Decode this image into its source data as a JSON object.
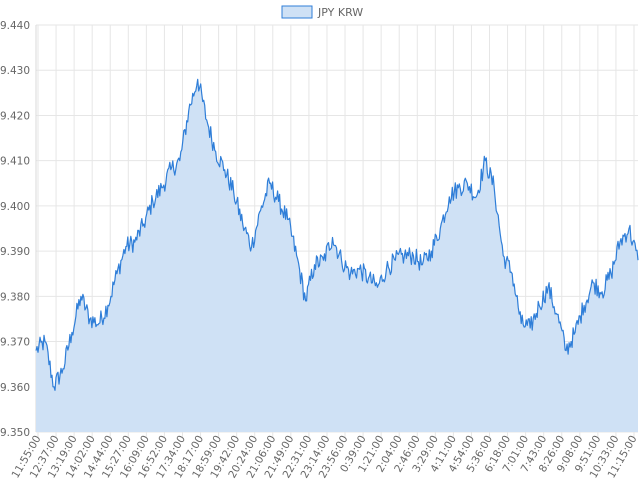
{
  "chart_data": {
    "type": "area",
    "title": "",
    "xlabel": "",
    "ylabel": "",
    "legend": {
      "position": "top-center",
      "entries": [
        "JPY KRW"
      ]
    },
    "grid": true,
    "ylim": [
      9.35,
      9.44
    ],
    "y_ticks": [
      "9.440",
      "9.430",
      "9.420",
      "9.410",
      "9.400",
      "9.390",
      "9.380",
      "9.370",
      "9.360",
      "9.350"
    ],
    "x_ticks": [
      "11:55:00",
      "12:37:00",
      "13:19:00",
      "14:02:00",
      "14:44:00",
      "15:27:00",
      "16:09:00",
      "16:52:00",
      "17:34:00",
      "18:17:00",
      "18:59:00",
      "19:42:00",
      "20:24:00",
      "21:06:00",
      "21:49:00",
      "22:31:00",
      "23:14:00",
      "23:56:00",
      "0:39:00",
      "1:21:00",
      "2:04:00",
      "2:46:00",
      "3:29:00",
      "4:11:00",
      "4:54:00",
      "5:36:00",
      "6:18:00",
      "7:01:00",
      "7:43:00",
      "8:26:00",
      "9:08:00",
      "9:51:00",
      "10:33:00",
      "11:15:00"
    ],
    "colors": {
      "line": "#2f7ed8",
      "fill": "#cfe1f5",
      "grid": "#e6e6e6"
    },
    "series": [
      {
        "name": "JPY KRW",
        "x": [
          "11:55:00",
          "12:16:00",
          "12:37:00",
          "12:58:00",
          "13:19:00",
          "13:40:00",
          "14:02:00",
          "14:23:00",
          "14:44:00",
          "15:05:00",
          "15:27:00",
          "15:48:00",
          "16:09:00",
          "16:30:00",
          "16:52:00",
          "17:13:00",
          "17:34:00",
          "17:55:00",
          "18:17:00",
          "18:38:00",
          "18:59:00",
          "19:20:00",
          "19:42:00",
          "20:03:00",
          "20:24:00",
          "20:45:00",
          "21:06:00",
          "21:27:00",
          "21:49:00",
          "22:10:00",
          "22:31:00",
          "22:52:00",
          "23:14:00",
          "23:35:00",
          "23:56:00",
          "0:17:00",
          "0:39:00",
          "1:00:00",
          "1:21:00",
          "1:42:00",
          "2:04:00",
          "2:25:00",
          "2:46:00",
          "3:07:00",
          "3:29:00",
          "3:50:00",
          "4:11:00",
          "4:32:00",
          "4:54:00",
          "5:15:00",
          "5:36:00",
          "5:57:00",
          "6:18:00",
          "6:39:00",
          "7:01:00",
          "7:22:00",
          "7:43:00",
          "8:04:00",
          "8:26:00",
          "8:47:00",
          "9:08:00",
          "9:29:00",
          "9:51:00",
          "10:12:00",
          "10:33:00",
          "10:54:00",
          "11:15:00",
          "11:36:00"
        ],
        "values": [
          9.368,
          9.37,
          9.36,
          9.364,
          9.372,
          9.38,
          9.375,
          9.374,
          9.378,
          9.385,
          9.391,
          9.392,
          9.396,
          9.401,
          9.404,
          9.408,
          9.41,
          9.421,
          9.428,
          9.419,
          9.412,
          9.408,
          9.403,
          9.396,
          9.391,
          9.399,
          9.405,
          9.401,
          9.397,
          9.389,
          9.379,
          9.387,
          9.388,
          9.393,
          9.388,
          9.385,
          9.386,
          9.384,
          9.382,
          9.386,
          9.388,
          9.389,
          9.389,
          9.387,
          9.39,
          9.395,
          9.402,
          9.404,
          9.405,
          9.402,
          9.41,
          9.404,
          9.389,
          9.385,
          9.374,
          9.373,
          9.378,
          9.382,
          9.376,
          9.368,
          9.372,
          9.378,
          9.383,
          9.381,
          9.385,
          9.392,
          9.395,
          9.388
        ]
      }
    ]
  }
}
